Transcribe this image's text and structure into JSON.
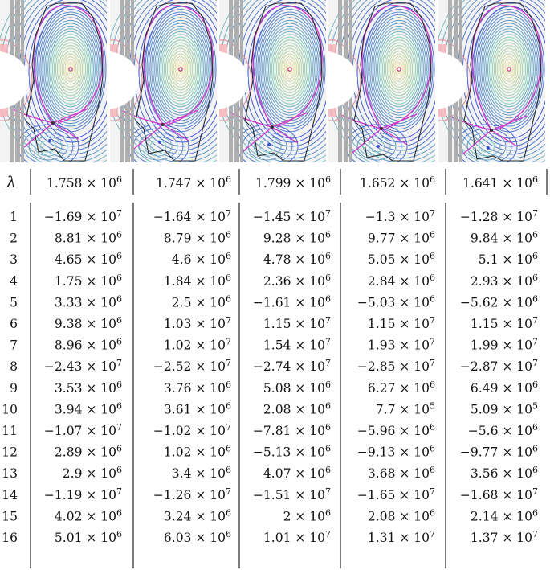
{
  "table": {
    "lambda_label": "λ",
    "lambda_values": [
      {
        "m": "1.758",
        "e": "6"
      },
      {
        "m": "1.747",
        "e": "6"
      },
      {
        "m": "1.799",
        "e": "6"
      },
      {
        "m": "1.652",
        "e": "6"
      },
      {
        "m": "1.641",
        "e": "6"
      }
    ],
    "rows": [
      {
        "n": "1",
        "cells": [
          {
            "m": "−1.69",
            "e": "7"
          },
          {
            "m": "−1.64",
            "e": "7"
          },
          {
            "m": "−1.45",
            "e": "7"
          },
          {
            "m": "−1.3",
            "e": "7"
          },
          {
            "m": "−1.28",
            "e": "7"
          }
        ]
      },
      {
        "n": "2",
        "cells": [
          {
            "m": "8.81",
            "e": "6"
          },
          {
            "m": "8.79",
            "e": "6"
          },
          {
            "m": "9.28",
            "e": "6"
          },
          {
            "m": "9.77",
            "e": "6"
          },
          {
            "m": "9.84",
            "e": "6"
          }
        ]
      },
      {
        "n": "3",
        "cells": [
          {
            "m": "4.65",
            "e": "6"
          },
          {
            "m": "4.6",
            "e": "6"
          },
          {
            "m": "4.78",
            "e": "6"
          },
          {
            "m": "5.05",
            "e": "6"
          },
          {
            "m": "5.1",
            "e": "6"
          }
        ]
      },
      {
        "n": "4",
        "cells": [
          {
            "m": "1.75",
            "e": "6"
          },
          {
            "m": "1.84",
            "e": "6"
          },
          {
            "m": "2.36",
            "e": "6"
          },
          {
            "m": "2.84",
            "e": "6"
          },
          {
            "m": "2.93",
            "e": "6"
          }
        ]
      },
      {
        "n": "5",
        "cells": [
          {
            "m": "3.33",
            "e": "6"
          },
          {
            "m": "2.5",
            "e": "6"
          },
          {
            "m": "−1.61",
            "e": "6"
          },
          {
            "m": "−5.03",
            "e": "6"
          },
          {
            "m": "−5.62",
            "e": "6"
          }
        ]
      },
      {
        "n": "6",
        "cells": [
          {
            "m": "9.38",
            "e": "6"
          },
          {
            "m": "1.03",
            "e": "7"
          },
          {
            "m": "1.15",
            "e": "7"
          },
          {
            "m": "1.15",
            "e": "7"
          },
          {
            "m": "1.15",
            "e": "7"
          }
        ]
      },
      {
        "n": "7",
        "cells": [
          {
            "m": "8.96",
            "e": "6"
          },
          {
            "m": "1.02",
            "e": "7"
          },
          {
            "m": "1.54",
            "e": "7"
          },
          {
            "m": "1.93",
            "e": "7"
          },
          {
            "m": "1.99",
            "e": "7"
          }
        ]
      },
      {
        "n": "8",
        "cells": [
          {
            "m": "−2.43",
            "e": "7"
          },
          {
            "m": "−2.52",
            "e": "7"
          },
          {
            "m": "−2.74",
            "e": "7"
          },
          {
            "m": "−2.85",
            "e": "7"
          },
          {
            "m": "−2.87",
            "e": "7"
          }
        ]
      },
      {
        "n": "9",
        "cells": [
          {
            "m": "3.53",
            "e": "6"
          },
          {
            "m": "3.76",
            "e": "6"
          },
          {
            "m": "5.08",
            "e": "6"
          },
          {
            "m": "6.27",
            "e": "6"
          },
          {
            "m": "6.49",
            "e": "6"
          }
        ]
      },
      {
        "n": "10",
        "cells": [
          {
            "m": "3.94",
            "e": "6"
          },
          {
            "m": "3.61",
            "e": "6"
          },
          {
            "m": "2.08",
            "e": "6"
          },
          {
            "m": "7.7",
            "e": "5"
          },
          {
            "m": "5.09",
            "e": "5"
          }
        ]
      },
      {
        "n": "11",
        "cells": [
          {
            "m": "−1.07",
            "e": "7"
          },
          {
            "m": "−1.02",
            "e": "7"
          },
          {
            "m": "−7.81",
            "e": "6"
          },
          {
            "m": "−5.96",
            "e": "6"
          },
          {
            "m": "−5.6",
            "e": "6"
          }
        ]
      },
      {
        "n": "12",
        "cells": [
          {
            "m": "2.89",
            "e": "6"
          },
          {
            "m": "1.02",
            "e": "6"
          },
          {
            "m": "−5.13",
            "e": "6"
          },
          {
            "m": "−9.13",
            "e": "6"
          },
          {
            "m": "−9.77",
            "e": "6"
          }
        ]
      },
      {
        "n": "13",
        "cells": [
          {
            "m": "2.9",
            "e": "6"
          },
          {
            "m": "3.4",
            "e": "6"
          },
          {
            "m": "4.07",
            "e": "6"
          },
          {
            "m": "3.68",
            "e": "6"
          },
          {
            "m": "3.56",
            "e": "6"
          }
        ]
      },
      {
        "n": "14",
        "cells": [
          {
            "m": "−1.19",
            "e": "7"
          },
          {
            "m": "−1.26",
            "e": "7"
          },
          {
            "m": "−1.51",
            "e": "7"
          },
          {
            "m": "−1.65",
            "e": "7"
          },
          {
            "m": "−1.68",
            "e": "7"
          }
        ]
      },
      {
        "n": "15",
        "cells": [
          {
            "m": "4.02",
            "e": "6"
          },
          {
            "m": "3.24",
            "e": "6"
          },
          {
            "m": "2",
            "e": "6"
          },
          {
            "m": "2.08",
            "e": "6"
          },
          {
            "m": "2.14",
            "e": "6"
          }
        ]
      },
      {
        "n": "16",
        "cells": [
          {
            "m": "5.01",
            "e": "6"
          },
          {
            "m": "6.03",
            "e": "6"
          },
          {
            "m": "1.01",
            "e": "7"
          },
          {
            "m": "1.31",
            "e": "7"
          },
          {
            "m": "1.37",
            "e": "7"
          }
        ]
      }
    ]
  },
  "colors": {
    "wall_pink": "#f6b4b8",
    "wall_gray": "#a8a8a8",
    "boundary": "#2a2a2a",
    "separatrix": "#d534c8",
    "axis_dot": "#c0307a",
    "contour_inner": "#f2e39a",
    "contour_mid": "#7ecbbf",
    "contour_outer": "#3b4fd8"
  }
}
